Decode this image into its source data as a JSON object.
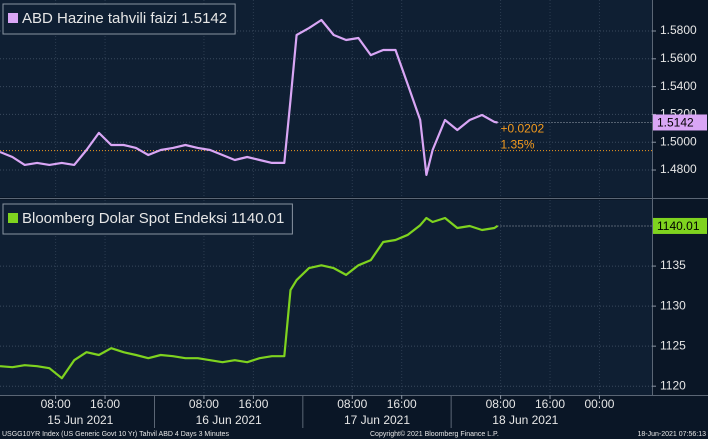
{
  "chart_data": [
    {
      "type": "line",
      "xlim": [
        "2021-06-14 23:00",
        "2021-06-19 08:30"
      ],
      "ylim": [
        1.4606,
        1.6023
      ],
      "yticks": [
        {
          "value": 1.48,
          "label": "1.4800"
        },
        {
          "value": 1.5,
          "label": "1.5000"
        },
        {
          "value": 1.52,
          "label": "1.5200"
        },
        {
          "value": 1.54,
          "label": "1.5400"
        },
        {
          "value": 1.56,
          "label": "1.5600"
        },
        {
          "value": 1.58,
          "label": "1.5800"
        }
      ],
      "grid": true,
      "x": [
        "2021-06-14 23:00",
        "2021-06-15 01:00",
        "2021-06-15 03:00",
        "2021-06-15 05:00",
        "2021-06-15 07:00",
        "2021-06-15 09:00",
        "2021-06-15 11:00",
        "2021-06-15 13:00",
        "2021-06-15 15:00",
        "2021-06-15 17:00",
        "2021-06-15 19:00",
        "2021-06-15 21:00",
        "2021-06-15 23:00",
        "2021-06-16 01:00",
        "2021-06-16 03:00",
        "2021-06-16 05:00",
        "2021-06-16 07:00",
        "2021-06-16 09:00",
        "2021-06-16 11:00",
        "2021-06-16 13:00",
        "2021-06-16 15:00",
        "2021-06-16 17:00",
        "2021-06-16 19:00",
        "2021-06-16 21:00",
        "2021-06-16 22:00",
        "2021-06-16 23:00",
        "2021-06-17 01:00",
        "2021-06-17 03:00",
        "2021-06-17 05:00",
        "2021-06-17 07:00",
        "2021-06-17 09:00",
        "2021-06-17 11:00",
        "2021-06-17 13:00",
        "2021-06-17 15:00",
        "2021-06-17 17:00",
        "2021-06-17 19:00",
        "2021-06-17 20:00",
        "2021-06-17 21:00",
        "2021-06-17 23:00",
        "2021-06-18 01:00",
        "2021-06-18 03:00",
        "2021-06-18 05:00",
        "2021-06-18 07:00",
        "2021-06-18 07:30"
      ],
      "series": [
        {
          "name": "ABD Hazine tahvili faizi",
          "color": "#d9a6f5",
          "values": [
            1.493,
            1.4894,
            1.4837,
            1.4851,
            1.4837,
            1.4851,
            1.4837,
            1.4944,
            1.5067,
            1.498,
            1.498,
            1.4959,
            1.4908,
            1.4944,
            1.4959,
            1.498,
            1.4959,
            1.4944,
            1.4908,
            1.4872,
            1.4894,
            1.4872,
            1.4851,
            1.4851,
            1.5304,
            1.5771,
            1.5821,
            1.5879,
            1.5771,
            1.5735,
            1.575,
            1.5627,
            1.5663,
            1.5663,
            1.5412,
            1.516,
            1.4765,
            1.4944,
            1.516,
            1.5088,
            1.516,
            1.5196,
            1.5146,
            1.5142
          ]
        }
      ],
      "reference_line": {
        "value": 1.494,
        "color": "#f39a1e"
      },
      "annotations": {
        "change": "+0.0202",
        "change_pct": "1.35%",
        "color": "#f39a1e"
      }
    },
    {
      "type": "line",
      "xlim": [
        "2021-06-14 23:00",
        "2021-06-19 08:30"
      ],
      "ylim": [
        1118.9,
        1143.25
      ],
      "yticks": [
        1120,
        1125,
        1130,
        1135
      ],
      "grid": true,
      "x": [
        "2021-06-14 23:00",
        "2021-06-15 01:00",
        "2021-06-15 03:00",
        "2021-06-15 05:00",
        "2021-06-15 07:00",
        "2021-06-15 09:00",
        "2021-06-15 11:00",
        "2021-06-15 13:00",
        "2021-06-15 15:00",
        "2021-06-15 17:00",
        "2021-06-15 19:00",
        "2021-06-15 21:00",
        "2021-06-15 23:00",
        "2021-06-16 01:00",
        "2021-06-16 03:00",
        "2021-06-16 05:00",
        "2021-06-16 07:00",
        "2021-06-16 09:00",
        "2021-06-16 11:00",
        "2021-06-16 13:00",
        "2021-06-16 15:00",
        "2021-06-16 17:00",
        "2021-06-16 19:00",
        "2021-06-16 21:00",
        "2021-06-16 22:00",
        "2021-06-16 23:00",
        "2021-06-17 01:00",
        "2021-06-17 03:00",
        "2021-06-17 05:00",
        "2021-06-17 07:00",
        "2021-06-17 09:00",
        "2021-06-17 11:00",
        "2021-06-17 13:00",
        "2021-06-17 15:00",
        "2021-06-17 17:00",
        "2021-06-17 19:00",
        "2021-06-17 20:00",
        "2021-06-17 21:00",
        "2021-06-17 23:00",
        "2021-06-18 01:00",
        "2021-06-18 03:00",
        "2021-06-18 05:00",
        "2021-06-18 07:00",
        "2021-06-18 07:30"
      ],
      "series": [
        {
          "name": "Bloomberg Dolar Spot Endeksi",
          "color": "#7fd31f",
          "values": [
            1122.5,
            1122.375,
            1122.625,
            1122.5,
            1122.25,
            1121,
            1123.25,
            1124.25,
            1123.9,
            1124.75,
            1124.25,
            1123.9,
            1123.5,
            1123.9,
            1123.75,
            1123.5,
            1123.5,
            1123.25,
            1123,
            1123.25,
            1123,
            1123.5,
            1123.75,
            1123.75,
            1132,
            1133.25,
            1134.75,
            1135.1,
            1134.75,
            1133.9,
            1135.1,
            1135.75,
            1138,
            1138.25,
            1138.9,
            1140.1,
            1141,
            1140.5,
            1141,
            1139.75,
            1140,
            1139.5,
            1139.75,
            1140.01
          ]
        }
      ],
      "xticks": [
        {
          "value": "2021-06-15 08:00",
          "label": "08:00"
        },
        {
          "value": "2021-06-15 16:00",
          "label": "16:00"
        },
        {
          "value": "2021-06-16 08:00",
          "label": "08:00"
        },
        {
          "value": "2021-06-16 16:00",
          "label": "16:00"
        },
        {
          "value": "2021-06-17 08:00",
          "label": "08:00"
        },
        {
          "value": "2021-06-17 16:00",
          "label": "16:00"
        },
        {
          "value": "2021-06-18 08:00",
          "label": "08:00"
        },
        {
          "value": "2021-06-18 16:00",
          "label": "16:00"
        },
        {
          "value": "2021-06-19 00:00",
          "label": "00:00"
        }
      ],
      "date_labels": [
        {
          "value": "2021-06-15 12:00",
          "label": "15 Jun 2021"
        },
        {
          "value": "2021-06-16 12:00",
          "label": "16 Jun 2021"
        },
        {
          "value": "2021-06-17 12:00",
          "label": "17 Jun 2021"
        },
        {
          "value": "2021-06-18 12:00",
          "label": "18 Jun 2021"
        }
      ]
    }
  ],
  "footer": {
    "left": "USGG10YR Index (US Generic Govt 10 Yr) Tahvil ABD 4 Days 3 Minutes",
    "center": "Copyright© 2021 Bloomberg Finance L.P.",
    "right": "18-Jun-2021 07:56:13"
  }
}
